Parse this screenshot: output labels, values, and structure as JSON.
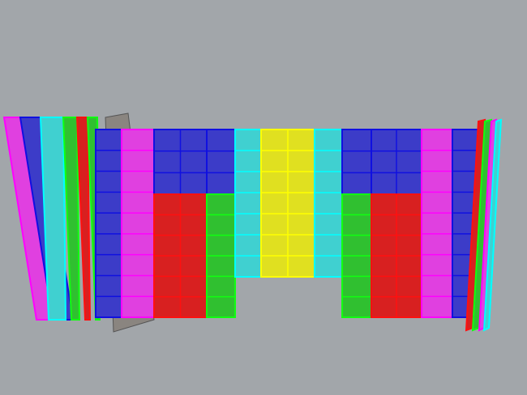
{
  "viewport": {
    "background": "#a2a6aa"
  },
  "colors": {
    "blue": "#3c3cc8",
    "blue_edge": "#1010e0",
    "magenta": "#e040e0",
    "magenta_edge": "#ff00ff",
    "red": "#d82020",
    "red_edge": "#ff1010",
    "green": "#30c030",
    "green_edge": "#10ff10",
    "cyan": "#40d0d0",
    "cyan_edge": "#00ffff",
    "yellow": "#e0e020",
    "yellow_edge": "#ffff00",
    "grey": "#8a8580"
  },
  "facade_columns": [
    {
      "top": "blue"
    },
    {
      "top": "magenta"
    },
    {
      "top": "blue",
      "bottom": "red"
    },
    {
      "top": "blue",
      "bottom": "green"
    },
    {
      "top": "cyan"
    },
    {
      "top": "yellow"
    },
    {
      "top": "cyan"
    },
    {
      "top": "blue",
      "bottom": "green"
    },
    {
      "top": "blue",
      "bottom": "red"
    },
    {
      "top": "magenta"
    },
    {
      "top": "blue"
    }
  ],
  "left_wing_strips": [
    "magenta",
    "blue",
    "cyan",
    "green",
    "red",
    "green"
  ],
  "right_wing_strips": [
    "red",
    "green",
    "magenta",
    "cyan"
  ]
}
